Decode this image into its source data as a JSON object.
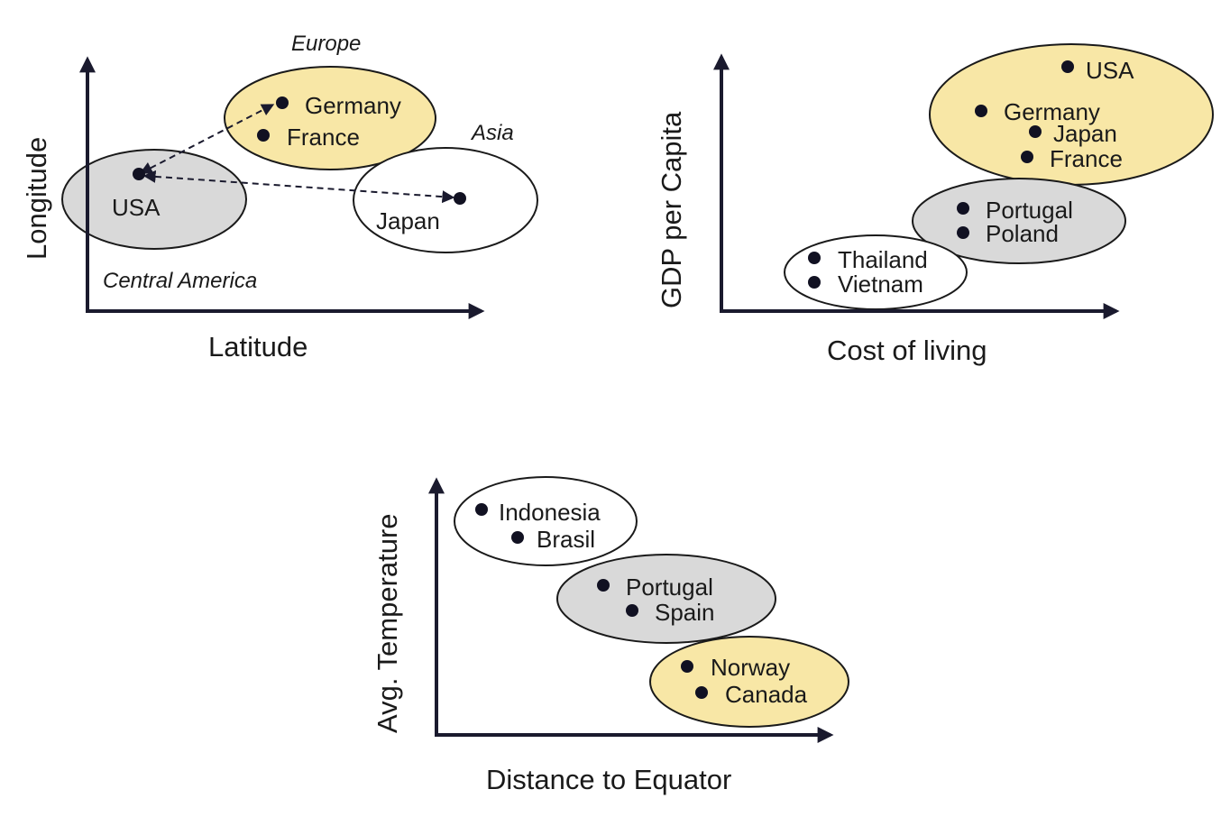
{
  "panel1": {
    "xlabel": "Latitude",
    "ylabel": "Longitude",
    "regions": {
      "europe": "Europe",
      "asia": "Asia",
      "central_america": "Central America"
    },
    "points": {
      "germany": "Germany",
      "france": "France",
      "usa": "USA",
      "japan": "Japan"
    }
  },
  "panel2": {
    "xlabel": "Cost of living",
    "ylabel": "GDP per Capita",
    "points": {
      "usa": "USA",
      "germany": "Germany",
      "japan": "Japan",
      "france": "France",
      "portugal": "Portugal",
      "poland": "Poland",
      "thailand": "Thailand",
      "vietnam": "Vietnam"
    }
  },
  "panel3": {
    "xlabel": "Distance to Equator",
    "ylabel": "Avg. Temperature",
    "points": {
      "indonesia": "Indonesia",
      "brasil": "Brasil",
      "portugal": "Portugal",
      "spain": "Spain",
      "norway": "Norway",
      "canada": "Canada"
    }
  },
  "colors": {
    "gray_cluster": "#d9d9d9",
    "yellow_cluster": "#f8e7a6",
    "white_cluster": "#ffffff",
    "dot": "#111122"
  }
}
